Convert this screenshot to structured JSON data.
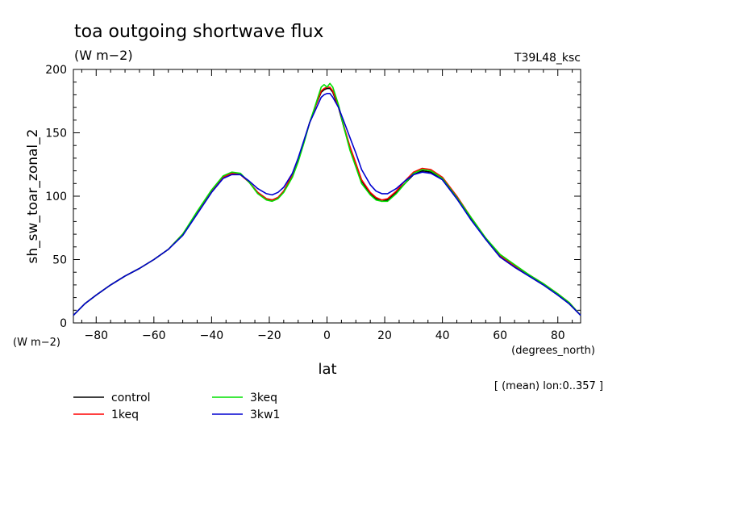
{
  "chart_data": {
    "type": "line",
    "title": "toa outgoing shortwave flux",
    "subtitle": "(W m−2)",
    "run_label": "T39L48_ksc",
    "ylabel": "sh_sw_toar_zonal_2",
    "yunits": "(W m−2)",
    "xlabel": "lat",
    "xunits": "(degrees_north)",
    "note": "[ (mean) lon:0..357 ]",
    "xlim": [
      -87.9,
      87.9
    ],
    "ylim": [
      0,
      200
    ],
    "xticks": [
      -80,
      -60,
      -40,
      -20,
      0,
      20,
      40,
      60,
      80
    ],
    "xtick_labels": [
      "−80",
      "−60",
      "−40",
      "−20",
      "0",
      "20",
      "40",
      "60",
      "80"
    ],
    "yticks": [
      0,
      50,
      100,
      150,
      200
    ],
    "ytick_labels": [
      "0",
      "50",
      "100",
      "150",
      "200"
    ],
    "grid": false,
    "legend_position": "bottom-left",
    "x": [
      -87.9,
      -84,
      -80,
      -75,
      -70,
      -65,
      -60,
      -55,
      -50,
      -45,
      -40,
      -36,
      -33,
      -30,
      -27,
      -24,
      -21,
      -19,
      -17,
      -15,
      -12,
      -10,
      -8,
      -6,
      -4,
      -2,
      -1,
      0,
      1,
      2,
      4,
      6,
      8,
      10,
      12,
      15,
      17,
      19,
      21,
      24,
      27,
      30,
      33,
      36,
      40,
      45,
      50,
      55,
      60,
      65,
      70,
      75,
      80,
      84,
      87.9
    ],
    "series": [
      {
        "name": "control",
        "color": "#000000",
        "values": [
          6,
          15,
          22,
          30,
          37,
          43,
          50,
          58,
          70,
          87,
          104,
          115,
          118,
          117,
          111,
          103,
          98,
          97,
          99,
          104,
          117,
          129,
          143,
          158,
          171,
          182,
          184,
          185,
          185,
          182,
          170,
          153,
          138,
          125,
          112,
          102,
          98,
          96,
          97,
          103,
          110,
          117,
          120,
          119,
          113,
          98,
          82,
          66,
          52,
          44,
          37,
          30,
          22,
          15,
          6
        ]
      },
      {
        "name": "1keq",
        "color": "#ff0000",
        "values": [
          6,
          15,
          22,
          30,
          37,
          43,
          50,
          58,
          70,
          87,
          104,
          115,
          118,
          117,
          111,
          103,
          98,
          97,
          99,
          104,
          117,
          129,
          143,
          158,
          171,
          183,
          185,
          186,
          186,
          183,
          171,
          154,
          139,
          126,
          113,
          103,
          99,
          97,
          98,
          104,
          112,
          119,
          122,
          121,
          115,
          100,
          83,
          67,
          53,
          45,
          38,
          31,
          23,
          16,
          6
        ]
      },
      {
        "name": "3keq",
        "color": "#00e000",
        "values": [
          6,
          15,
          22,
          30,
          37,
          43,
          50,
          58,
          70,
          88,
          105,
          116,
          119,
          118,
          111,
          102,
          97,
          96,
          98,
          103,
          115,
          127,
          142,
          158,
          172,
          186,
          188,
          186,
          189,
          186,
          172,
          153,
          136,
          123,
          110,
          101,
          97,
          96,
          96,
          102,
          110,
          118,
          121,
          120,
          114,
          99,
          83,
          67,
          54,
          46,
          38,
          31,
          23,
          16,
          6
        ]
      },
      {
        "name": "3kw1",
        "color": "#0000d0",
        "values": [
          6,
          15,
          22,
          30,
          37,
          43,
          50,
          58,
          69,
          86,
          103,
          114,
          117,
          117,
          112,
          106,
          102,
          101,
          103,
          107,
          118,
          130,
          144,
          158,
          168,
          178,
          180,
          181,
          181,
          178,
          170,
          158,
          146,
          134,
          121,
          109,
          104,
          102,
          102,
          106,
          112,
          117,
          119,
          118,
          113,
          98,
          81,
          66,
          52,
          44,
          37,
          30,
          22,
          15,
          6
        ]
      }
    ]
  }
}
